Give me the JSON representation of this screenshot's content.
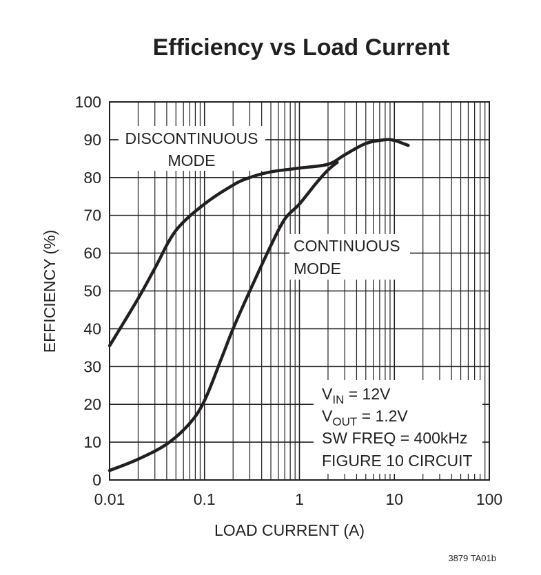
{
  "chart_data": {
    "type": "line",
    "title": "Efficiency vs Load Current",
    "xlabel": "LOAD CURRENT (A)",
    "ylabel": "EFFICIENCY (%)",
    "xscale": "log",
    "xlim": [
      0.01,
      100
    ],
    "ylim": [
      0,
      100
    ],
    "grid": true,
    "xticks": [
      "0.01",
      "0.1",
      "1",
      "10",
      "100"
    ],
    "yticks": [
      "0",
      "10",
      "20",
      "30",
      "40",
      "50",
      "60",
      "70",
      "80",
      "90",
      "100"
    ],
    "series": [
      {
        "name": "DISCONTINUOUS MODE",
        "x": [
          0.01,
          0.02,
          0.03,
          0.05,
          0.1,
          0.2,
          0.3,
          0.5,
          1,
          2,
          3,
          5,
          8,
          10,
          14
        ],
        "y": [
          35.5,
          48,
          56,
          66,
          73,
          78,
          80,
          81.5,
          82.5,
          83.5,
          86,
          89,
          90,
          89.8,
          88.5
        ]
      },
      {
        "name": "CONTINUOUS MODE",
        "x": [
          0.01,
          0.02,
          0.04,
          0.07,
          0.1,
          0.15,
          0.2,
          0.3,
          0.5,
          0.7,
          1,
          1.5,
          2,
          2.5
        ],
        "y": [
          2.5,
          5.5,
          9.5,
          15,
          21,
          32,
          40,
          50,
          62,
          69,
          73,
          78.5,
          82,
          84
        ]
      }
    ],
    "annotations": {
      "discontinuous": [
        "DISCONTINUOUS",
        "MODE"
      ],
      "continuous": [
        "CONTINUOUS",
        "MODE"
      ],
      "conditions": {
        "vin_label": "V",
        "vin_sub": "IN",
        "vin_value": " = 12V",
        "vout_label": "V",
        "vout_sub": "OUT",
        "vout_value": " = 1.2V",
        "freq": "SW FREQ = 400kHz",
        "circuit": "FIGURE 10 CIRCUIT"
      }
    },
    "figure_code": "3879 TA01b"
  }
}
